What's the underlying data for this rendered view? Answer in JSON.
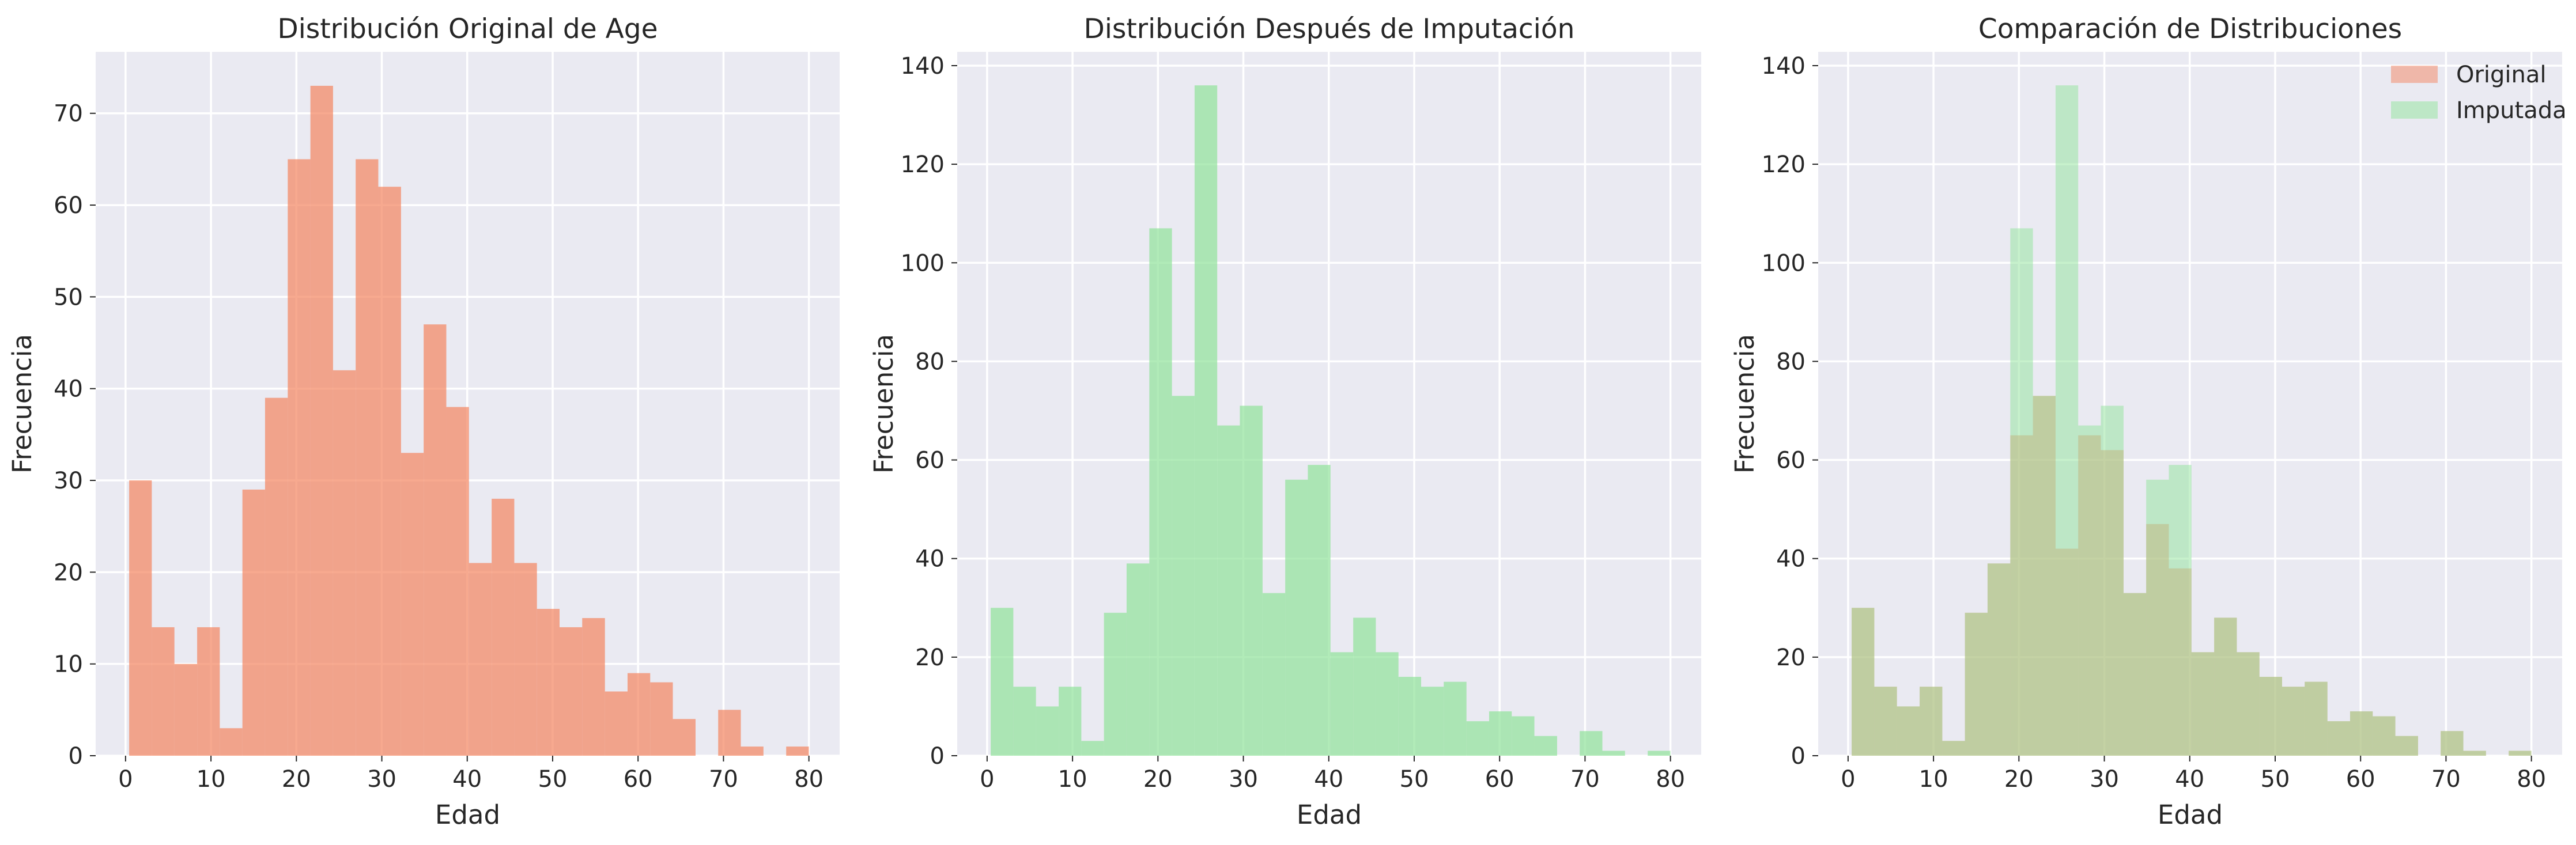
{
  "chart_data": [
    {
      "type": "bar",
      "title": "Distribución Original de Age",
      "xlabel": "Edad",
      "ylabel": "Frecuencia",
      "xlim": [
        -3.5,
        83.6
      ],
      "ylim": [
        0,
        76.7
      ],
      "xticks": [
        0,
        10,
        20,
        30,
        40,
        50,
        60,
        70,
        80
      ],
      "yticks": [
        0,
        10,
        20,
        30,
        40,
        50,
        60,
        70
      ],
      "bin_edges": [
        0.42,
        3.07,
        5.72,
        8.38,
        11.03,
        13.68,
        16.33,
        18.99,
        21.64,
        24.29,
        26.94,
        29.59,
        32.25,
        34.9,
        37.55,
        40.2,
        42.86,
        45.51,
        48.16,
        50.81,
        53.46,
        56.12,
        58.77,
        61.42,
        64.07,
        66.73,
        69.38,
        72.03,
        74.68,
        77.34,
        79.99
      ],
      "series": [
        {
          "values": [
            30,
            14,
            10,
            14,
            3,
            29,
            39,
            65,
            73,
            42,
            65,
            62,
            33,
            47,
            38,
            21,
            28,
            21,
            16,
            14,
            15,
            7,
            9,
            8,
            4,
            0,
            5,
            1,
            0,
            1
          ],
          "color": "#f4845f",
          "alpha": 0.7
        }
      ],
      "grid": true
    },
    {
      "type": "bar",
      "title": "Distribución Después de Imputación",
      "xlabel": "Edad",
      "ylabel": "Frecuencia",
      "xlim": [
        -3.5,
        83.6
      ],
      "ylim": [
        0,
        142.8
      ],
      "xticks": [
        0,
        10,
        20,
        30,
        40,
        50,
        60,
        70,
        80
      ],
      "yticks": [
        0,
        20,
        40,
        60,
        80,
        100,
        120,
        140
      ],
      "bin_edges": [
        0.42,
        3.07,
        5.72,
        8.38,
        11.03,
        13.68,
        16.33,
        18.99,
        21.64,
        24.29,
        26.94,
        29.59,
        32.25,
        34.9,
        37.55,
        40.2,
        42.86,
        45.51,
        48.16,
        50.81,
        53.46,
        56.12,
        58.77,
        61.42,
        64.07,
        66.73,
        69.38,
        72.03,
        74.68,
        77.34,
        79.99
      ],
      "series": [
        {
          "values": [
            30,
            14,
            10,
            14,
            3,
            29,
            39,
            107,
            73,
            136,
            67,
            71,
            33,
            56,
            59,
            21,
            28,
            21,
            16,
            14,
            15,
            7,
            9,
            8,
            4,
            0,
            5,
            1,
            0,
            1
          ],
          "color": "#90e39a",
          "alpha": 0.7
        }
      ],
      "grid": true
    },
    {
      "type": "bar",
      "title": "Comparación de Distribuciones",
      "xlabel": "Edad",
      "ylabel": "Frecuencia",
      "xlim": [
        -3.5,
        83.6
      ],
      "ylim": [
        0,
        142.8
      ],
      "xticks": [
        0,
        10,
        20,
        30,
        40,
        50,
        60,
        70,
        80
      ],
      "yticks": [
        0,
        20,
        40,
        60,
        80,
        100,
        120,
        140
      ],
      "bin_edges": [
        0.42,
        3.07,
        5.72,
        8.38,
        11.03,
        13.68,
        16.33,
        18.99,
        21.64,
        24.29,
        26.94,
        29.59,
        32.25,
        34.9,
        37.55,
        40.2,
        42.86,
        45.51,
        48.16,
        50.81,
        53.46,
        56.12,
        58.77,
        61.42,
        64.07,
        66.73,
        69.38,
        72.03,
        74.68,
        77.34,
        79.99
      ],
      "series": [
        {
          "name": "Original",
          "values": [
            30,
            14,
            10,
            14,
            3,
            29,
            39,
            65,
            73,
            42,
            65,
            62,
            33,
            47,
            38,
            21,
            28,
            21,
            16,
            14,
            15,
            7,
            9,
            8,
            4,
            0,
            5,
            1,
            0,
            1
          ],
          "color": "#f4845f",
          "alpha": 0.5
        },
        {
          "name": "Imputada",
          "values": [
            30,
            14,
            10,
            14,
            3,
            29,
            39,
            107,
            73,
            136,
            67,
            71,
            33,
            56,
            59,
            21,
            28,
            21,
            16,
            14,
            15,
            7,
            9,
            8,
            4,
            0,
            5,
            1,
            0,
            1
          ],
          "color": "#90e39a",
          "alpha": 0.5
        }
      ],
      "legend": "top-right",
      "grid": true
    }
  ]
}
